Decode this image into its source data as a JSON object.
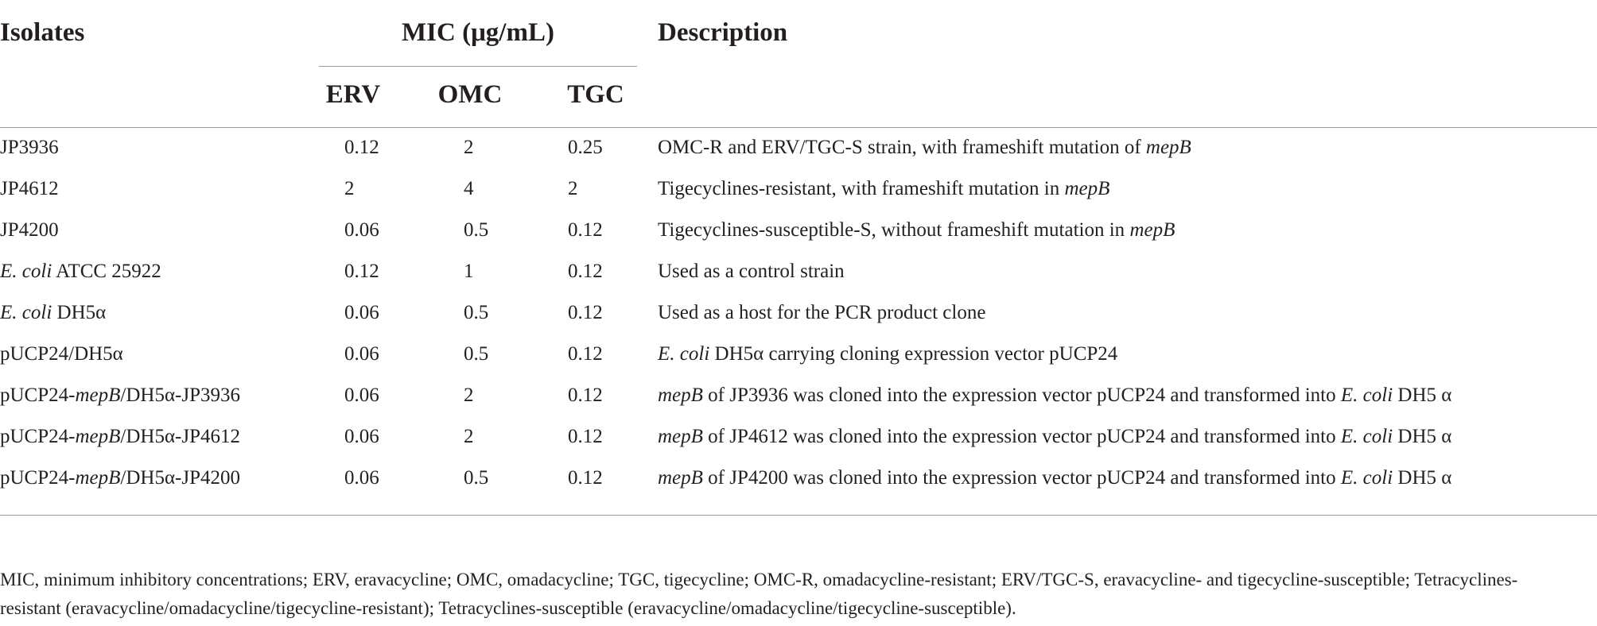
{
  "header": {
    "isolates": "Isolates",
    "mic": "MIC (μg/mL)",
    "description": "Description",
    "subcolumns": [
      "ERV",
      "OMC",
      "TGC"
    ]
  },
  "table": {
    "rows": [
      {
        "isolate": [
          "JP3936"
        ],
        "erv": "0.12",
        "omc": "2",
        "tgc": "0.25",
        "description": [
          "OMC-R and ERV/TGC-S strain, with frameshift mutation of ",
          {
            "text": "mepB",
            "italic": true
          }
        ]
      },
      {
        "isolate": [
          "JP4612"
        ],
        "erv": "2",
        "omc": "4",
        "tgc": "2",
        "description": [
          "Tigecyclines-resistant, with frameshift mutation in ",
          {
            "text": "mepB",
            "italic": true
          }
        ]
      },
      {
        "isolate": [
          "JP4200"
        ],
        "erv": "0.06",
        "omc": "0.5",
        "tgc": "0.12",
        "description": [
          "Tigecyclines-susceptible-S, without frameshift mutation in ",
          {
            "text": "mepB",
            "italic": true
          }
        ]
      },
      {
        "isolate": [
          {
            "text": "E. coli",
            "italic": true
          },
          " ATCC 25922"
        ],
        "erv": "0.12",
        "omc": "1",
        "tgc": "0.12",
        "description": [
          "Used as a control strain"
        ]
      },
      {
        "isolate": [
          {
            "text": "E. coli",
            "italic": true
          },
          " DH5α"
        ],
        "erv": "0.06",
        "omc": "0.5",
        "tgc": "0.12",
        "description": [
          "Used as a host for the PCR product clone"
        ]
      },
      {
        "isolate": [
          "pUCP24/DH5α"
        ],
        "erv": "0.06",
        "omc": "0.5",
        "tgc": "0.12",
        "description": [
          {
            "text": "E. coli",
            "italic": true
          },
          " DH5α carrying cloning expression vector pUCP24"
        ]
      },
      {
        "isolate": [
          "pUCP24-",
          {
            "text": "mepB",
            "italic": true
          },
          "/DH5α-JP3936"
        ],
        "erv": "0.06",
        "omc": "2",
        "tgc": "0.12",
        "description": [
          {
            "text": "mepB",
            "italic": true
          },
          " of JP3936 was cloned into the expression vector pUCP24 and transformed into ",
          {
            "text": "E. coli",
            "italic": true
          },
          " DH5 α"
        ]
      },
      {
        "isolate": [
          "pUCP24-",
          {
            "text": "mepB",
            "italic": true
          },
          "/DH5α-JP4612"
        ],
        "erv": "0.06",
        "omc": "2",
        "tgc": "0.12",
        "description": [
          {
            "text": "mepB",
            "italic": true
          },
          " of JP4612 was cloned into the expression vector pUCP24 and transformed into ",
          {
            "text": "E. coli",
            "italic": true
          },
          " DH5 α"
        ]
      },
      {
        "isolate": [
          "pUCP24-",
          {
            "text": "mepB",
            "italic": true
          },
          "/DH5α-JP4200"
        ],
        "erv": "0.06",
        "omc": "0.5",
        "tgc": "0.12",
        "description": [
          {
            "text": "mepB",
            "italic": true
          },
          " of JP4200 was cloned into the expression vector pUCP24 and transformed into ",
          {
            "text": "E. coli",
            "italic": true
          },
          " DH5 α"
        ]
      }
    ]
  },
  "footnote": "MIC, minimum inhibitory concentrations; ERV, eravacycline; OMC, omadacycline; TGC, tigecycline; OMC-R, omadacycline-resistant; ERV/TGC-S, eravacycline- and tigecycline-susceptible; Tetracyclines-resistant (eravacycline/omadacycline/tigecycline-resistant); Tetracyclines-susceptible (eravacycline/omadacycline/tigecycline-susceptible)."
}
